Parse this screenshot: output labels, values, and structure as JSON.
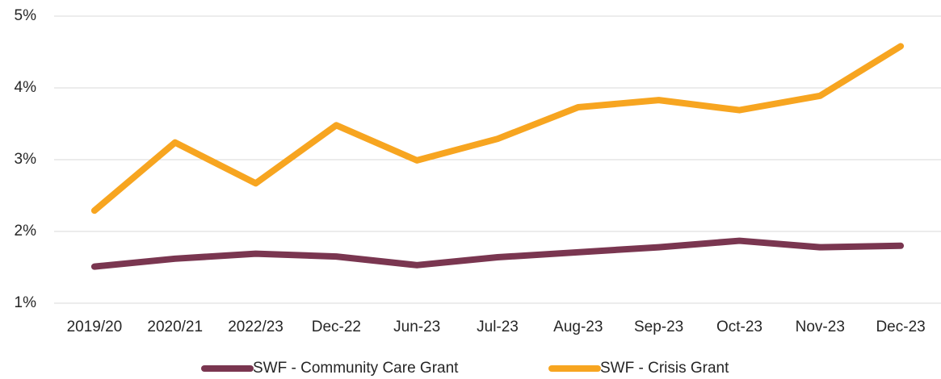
{
  "chart_data": {
    "type": "line",
    "categories": [
      "2019/20",
      "2020/21",
      "2022/23",
      "Dec-22",
      "Jun-23",
      "Jul-23",
      "Aug-23",
      "Sep-23",
      "Oct-23",
      "Nov-23",
      "Dec-23"
    ],
    "series": [
      {
        "name": "SWF - Community Care Grant",
        "color": "#7a3650",
        "values": [
          1.51,
          1.62,
          1.69,
          1.65,
          1.53,
          1.64,
          1.71,
          1.78,
          1.87,
          1.78,
          1.8
        ]
      },
      {
        "name": "SWF - Crisis Grant",
        "color": "#f7a520",
        "values": [
          2.29,
          3.24,
          2.67,
          3.48,
          2.99,
          3.29,
          3.73,
          3.83,
          3.69,
          3.89,
          4.58
        ]
      }
    ],
    "ylim": [
      1,
      5
    ],
    "yticks": [
      {
        "value": 1,
        "label": "1%"
      },
      {
        "value": 2,
        "label": "2%"
      },
      {
        "value": 3,
        "label": "3%"
      },
      {
        "value": 4,
        "label": "4%"
      },
      {
        "value": 5,
        "label": "5%"
      }
    ],
    "grid": true,
    "legend": "bottom"
  }
}
